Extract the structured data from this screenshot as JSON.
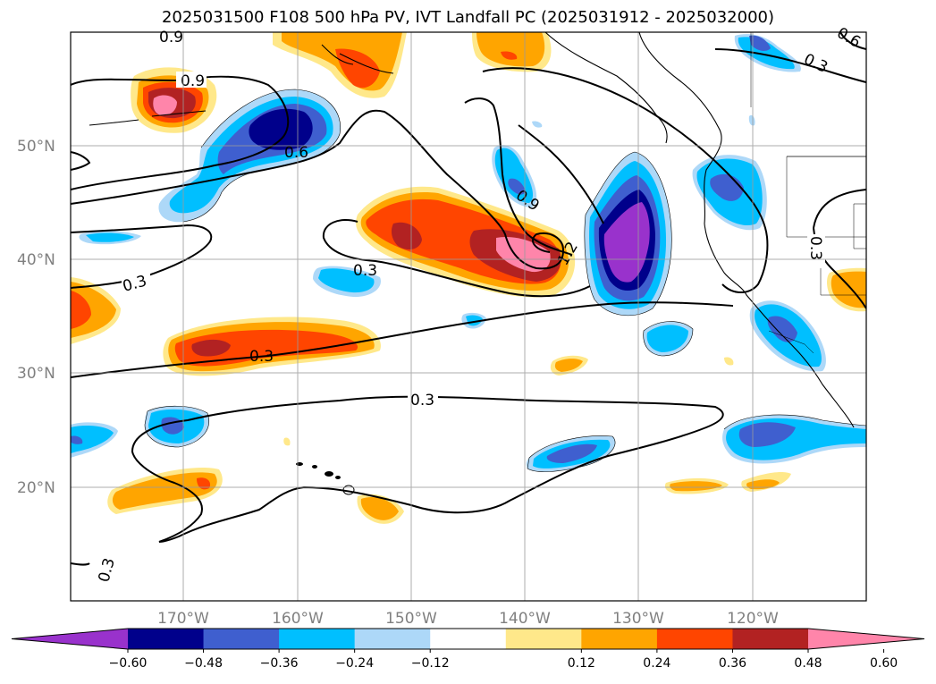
{
  "title": "2025031500 F108 500 hPa PV, IVT Landfall PC (2025031912 - 2025032000)",
  "lat_labels": [
    "50°N",
    "40°N",
    "30°N",
    "20°N"
  ],
  "lon_labels": [
    "170°W",
    "160°W",
    "150°W",
    "140°W",
    "130°W",
    "120°W"
  ],
  "contour_labels": [
    "0.9",
    "0.9",
    "0.6",
    "0.9",
    "0.3",
    "0.3",
    "0.3",
    "0.3",
    "1.2",
    "0.3",
    "0.3",
    "0.3",
    "0.6"
  ],
  "colorbar": {
    "colors": [
      "#9932cc",
      "#00008b",
      "#3f5fcf",
      "#00bfff",
      "#add8f8",
      "#ffffff",
      "#ffe88a",
      "#ffa500",
      "#ff4500",
      "#b22222",
      "#ff85aa"
    ],
    "tick_labels": [
      "−0.60",
      "−0.48",
      "−0.36",
      "−0.24",
      "−0.12",
      "0.12",
      "0.24",
      "0.36",
      "0.48",
      "0.60"
    ]
  },
  "colors": {
    "neg_purple": "#9932cc",
    "neg_navy": "#00008b",
    "neg_blue": "#3f5fcf",
    "neg_sky": "#00bfff",
    "neg_light": "#add8f8",
    "pos_yellow": "#ffe88a",
    "pos_orange": "#ffa500",
    "pos_red": "#ff4500",
    "pos_darkred": "#b22222",
    "pos_pink": "#ff85aa"
  }
}
